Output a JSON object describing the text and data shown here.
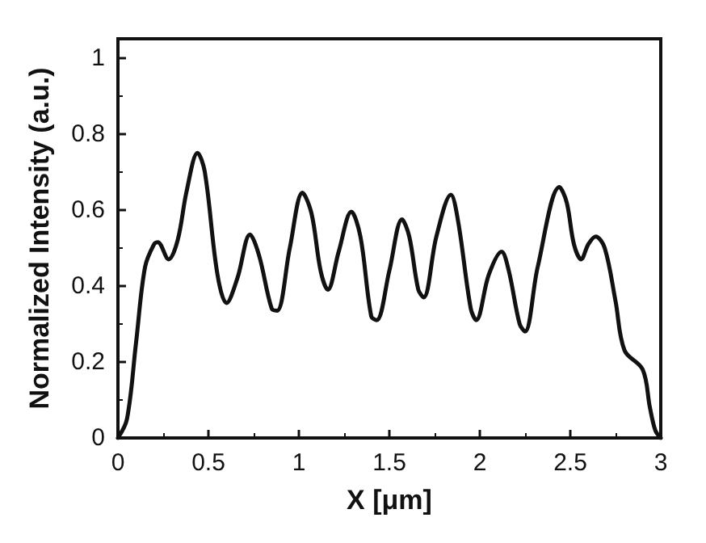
{
  "chart_data": {
    "type": "line",
    "xlabel": "X [μm]",
    "ylabel": "Normalized Intensity (a.u.)",
    "x": [
      0,
      0.05,
      0.1,
      0.15,
      0.2,
      0.22,
      0.28,
      0.33,
      0.38,
      0.44,
      0.48,
      0.55,
      0.6,
      0.66,
      0.73,
      0.78,
      0.85,
      0.88,
      0.95,
      1.02,
      1.07,
      1.12,
      1.16,
      1.22,
      1.29,
      1.34,
      1.4,
      1.43,
      1.5,
      1.57,
      1.61,
      1.66,
      1.69,
      1.76,
      1.84,
      1.88,
      1.95,
      1.98,
      2.05,
      2.12,
      2.16,
      2.22,
      2.25,
      2.32,
      2.44,
      2.48,
      2.52,
      2.56,
      2.6,
      2.64,
      2.69,
      2.75,
      2.8,
      2.9,
      2.94,
      2.97,
      3
    ],
    "series": [
      {
        "color": "#111111",
        "values": [
          0,
          0.05,
          0.25,
          0.45,
          0.51,
          0.515,
          0.47,
          0.52,
          0.65,
          0.75,
          0.7,
          0.43,
          0.355,
          0.42,
          0.535,
          0.48,
          0.34,
          0.335,
          0.5,
          0.645,
          0.59,
          0.44,
          0.39,
          0.49,
          0.595,
          0.53,
          0.32,
          0.31,
          0.44,
          0.575,
          0.53,
          0.39,
          0.37,
          0.53,
          0.64,
          0.57,
          0.34,
          0.31,
          0.43,
          0.49,
          0.44,
          0.3,
          0.28,
          0.45,
          0.66,
          0.62,
          0.51,
          0.47,
          0.51,
          0.53,
          0.5,
          0.36,
          0.23,
          0.18,
          0.08,
          0.02,
          0
        ]
      }
    ],
    "xlim": [
      0,
      3
    ],
    "xticks": [
      0,
      0.5,
      1,
      1.5,
      2,
      2.5,
      3
    ],
    "ylim": [
      0,
      1.05
    ],
    "yticks": [
      0,
      0.2,
      0.4,
      0.6,
      0.8,
      1
    ],
    "grid": false,
    "marker": "none",
    "line_style": "solid"
  }
}
